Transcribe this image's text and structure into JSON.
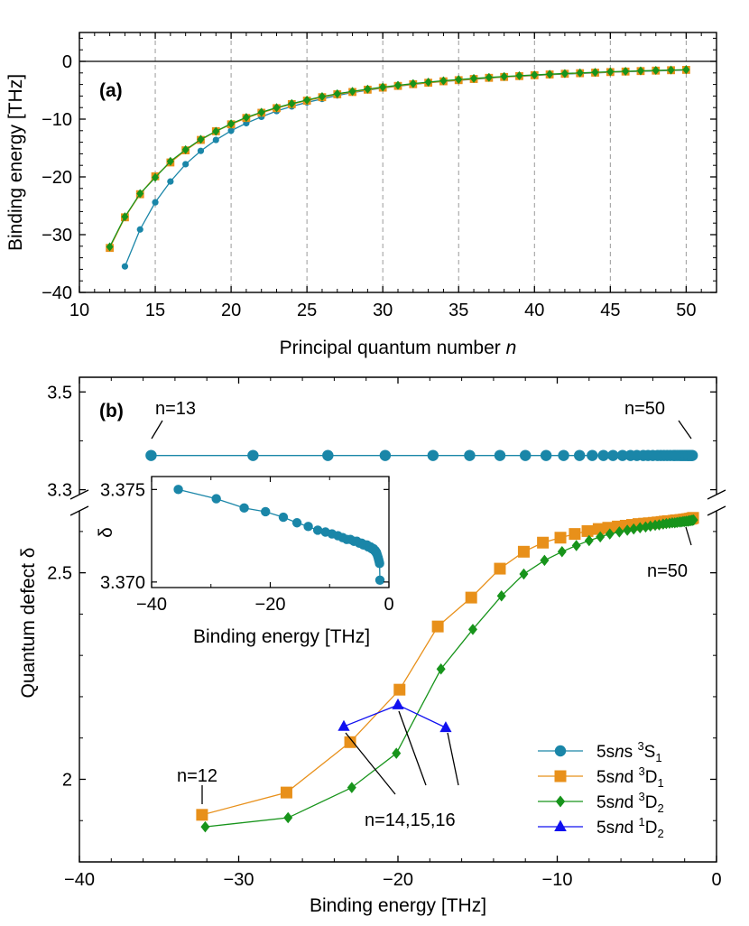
{
  "colors": {
    "S1": "#1a86a8",
    "D1": "#e8901a",
    "D2": "#17941b",
    "D2b": "#1010f0",
    "frame": "#000000",
    "grid": "#9a9a9a"
  },
  "chart_data": [
    {
      "id": "a",
      "type": "line",
      "panel_label": "(a)",
      "xlabel": "Principal quantum number",
      "xlabel_var": "n",
      "ylabel": "Binding energy [THz]",
      "xlim": [
        10,
        52
      ],
      "ylim": [
        -40,
        5
      ],
      "xticks": [
        10,
        15,
        20,
        25,
        30,
        35,
        40,
        45,
        50
      ],
      "yticks": [
        0,
        -10,
        -20,
        -30,
        -40
      ],
      "ytick_labels": [
        "0",
        "−10",
        "−20",
        "−30",
        "−40"
      ],
      "vgrid": [
        15,
        20,
        25,
        30,
        35,
        40,
        45,
        50
      ],
      "hline": 0,
      "series": [
        {
          "key": "S1",
          "marker": "circle",
          "n": [
            13,
            14,
            15,
            16,
            17,
            18,
            19,
            20,
            21,
            22,
            23,
            24,
            25,
            26,
            27,
            28,
            29,
            30,
            31,
            32,
            33,
            34,
            35,
            36,
            37,
            38,
            39,
            40,
            41,
            42,
            43,
            44,
            45,
            46,
            47,
            48,
            49,
            50
          ],
          "energy": [
            -35.5,
            -29.1,
            -24.4,
            -20.8,
            -17.8,
            -15.5,
            -13.6,
            -12.0,
            -10.7,
            -9.6,
            -8.6,
            -7.8,
            -7.1,
            -6.5,
            -5.9,
            -5.4,
            -5.0,
            -4.6,
            -4.3,
            -4.0,
            -3.7,
            -3.5,
            -3.3,
            -3.1,
            -2.9,
            -2.7,
            -2.6,
            -2.45,
            -2.3,
            -2.2,
            -2.1,
            -2.0,
            -1.9,
            -1.8,
            -1.73,
            -1.65,
            -1.58,
            -1.52
          ]
        },
        {
          "key": "D1",
          "marker": "square",
          "n": [
            12,
            13,
            14,
            15,
            16,
            17,
            18,
            19,
            20,
            21,
            22,
            23,
            24,
            25,
            26,
            27,
            28,
            29,
            30,
            31,
            32,
            33,
            34,
            35,
            36,
            37,
            38,
            39,
            40,
            41,
            42,
            43,
            44,
            45,
            46,
            47,
            48,
            49,
            50
          ],
          "energy": [
            -32.3,
            -27.0,
            -23.0,
            -19.9,
            -17.5,
            -15.4,
            -13.6,
            -12.1,
            -10.9,
            -9.8,
            -8.9,
            -8.1,
            -7.4,
            -6.8,
            -6.2,
            -5.7,
            -5.3,
            -4.9,
            -4.55,
            -4.25,
            -3.95,
            -3.7,
            -3.45,
            -3.25,
            -3.05,
            -2.85,
            -2.7,
            -2.55,
            -2.4,
            -2.27,
            -2.15,
            -2.05,
            -1.95,
            -1.85,
            -1.76,
            -1.68,
            -1.6,
            -1.53,
            -1.47
          ]
        },
        {
          "key": "D2",
          "marker": "diamond",
          "n": [
            12,
            13,
            14,
            15,
            16,
            17,
            18,
            19,
            20,
            21,
            22,
            23,
            24,
            25,
            26,
            27,
            28,
            29,
            30,
            31,
            32,
            33,
            34,
            35,
            36,
            37,
            38,
            39,
            40,
            41,
            42,
            43,
            44,
            45,
            46,
            47,
            48,
            49,
            50
          ],
          "energy": [
            -32.1,
            -26.9,
            -22.9,
            -20.1,
            -17.3,
            -15.3,
            -13.5,
            -12.1,
            -10.8,
            -9.7,
            -8.8,
            -8.0,
            -7.3,
            -6.7,
            -6.1,
            -5.6,
            -5.2,
            -4.8,
            -4.45,
            -4.15,
            -3.85,
            -3.6,
            -3.35,
            -3.15,
            -2.95,
            -2.78,
            -2.62,
            -2.48,
            -2.34,
            -2.22,
            -2.1,
            -2.0,
            -1.9,
            -1.8,
            -1.72,
            -1.64,
            -1.57,
            -1.5,
            -1.44
          ]
        }
      ]
    },
    {
      "id": "b",
      "type": "line",
      "panel_label": "(b)",
      "xlabel": "Binding energy [THz]",
      "ylabel": "Quantum defect δ",
      "xlim": [
        -40,
        0
      ],
      "ylim_upper": [
        3.29,
        3.53
      ],
      "ylim_lower": [
        1.8,
        2.65
      ],
      "yticks_upper": [
        3.5,
        3.3
      ],
      "ytick_labels_upper": [
        "3.5",
        "3.3"
      ],
      "yticks_lower": [
        2.5,
        2.0
      ],
      "ytick_labels_lower": [
        "2.5",
        "2"
      ],
      "xticks": [
        -40,
        -30,
        -20,
        -10,
        0
      ],
      "xtick_labels": [
        "−40",
        "−30",
        "−20",
        "−10",
        "0"
      ],
      "series": [
        {
          "key": "S1",
          "name_parts": [
            "5s",
            "n",
            "s ",
            "3",
            "S",
            "1"
          ],
          "marker": "circle",
          "x": [
            -35.5,
            -29.1,
            -24.4,
            -20.8,
            -17.8,
            -15.5,
            -13.6,
            -12.0,
            -10.7,
            -9.6,
            -8.6,
            -7.8,
            -7.1,
            -6.5,
            -5.9,
            -5.4,
            -5.0,
            -4.6,
            -4.3,
            -4.0,
            -3.7,
            -3.5,
            -3.3,
            -3.1,
            -2.9,
            -2.7,
            -2.6,
            -2.45,
            -2.3,
            -2.2,
            -2.1,
            -2.0,
            -1.9,
            -1.8,
            -1.73,
            -1.65,
            -1.58,
            -1.52
          ],
          "y": [
            3.375,
            3.3745,
            3.374,
            3.3738,
            3.3735,
            3.3732,
            3.373,
            3.3728,
            3.3727,
            3.3726,
            3.3725,
            3.3724,
            3.3723,
            3.3723,
            3.3722,
            3.3722,
            3.3721,
            3.3721,
            3.372,
            3.372,
            3.372,
            3.3719,
            3.3719,
            3.3719,
            3.3718,
            3.3718,
            3.3718,
            3.3717,
            3.3717,
            3.3716,
            3.3716,
            3.3715,
            3.3714,
            3.3713,
            3.3712,
            3.3711,
            3.371,
            3.3701
          ]
        },
        {
          "key": "D1",
          "name_parts": [
            "5s",
            "n",
            "d ",
            "3",
            "D",
            "1"
          ],
          "marker": "square",
          "x": [
            -32.3,
            -27.0,
            -23.0,
            -19.9,
            -17.5,
            -15.4,
            -13.6,
            -12.1,
            -10.9,
            -9.8,
            -8.9,
            -8.1,
            -7.4,
            -6.8,
            -6.2,
            -5.7,
            -5.3,
            -4.9,
            -4.55,
            -4.25,
            -3.95,
            -3.7,
            -3.45,
            -3.25,
            -3.05,
            -2.85,
            -2.7,
            -2.55,
            -2.4,
            -2.27,
            -2.15,
            -2.05,
            -1.95,
            -1.85,
            -1.76,
            -1.68,
            -1.6,
            -1.53,
            -1.47
          ],
          "y": [
            1.914,
            1.968,
            2.09,
            2.217,
            2.37,
            2.44,
            2.51,
            2.551,
            2.573,
            2.585,
            2.594,
            2.601,
            2.606,
            2.609,
            2.612,
            2.614,
            2.616,
            2.618,
            2.619,
            2.62,
            2.621,
            2.622,
            2.623,
            2.624,
            2.625,
            2.625,
            2.626,
            2.627,
            2.627,
            2.628,
            2.628,
            2.629,
            2.629,
            2.63,
            2.63,
            2.631,
            2.631,
            2.632,
            2.633
          ]
        },
        {
          "key": "D2",
          "name_parts": [
            "5s",
            "n",
            "d ",
            "3",
            "D",
            "2"
          ],
          "marker": "diamond",
          "x": [
            -32.1,
            -26.9,
            -22.9,
            -20.1,
            -17.3,
            -15.3,
            -13.5,
            -12.1,
            -10.8,
            -9.7,
            -8.8,
            -8.0,
            -7.3,
            -6.7,
            -6.1,
            -5.6,
            -5.2,
            -4.8,
            -4.45,
            -4.15,
            -3.85,
            -3.6,
            -3.35,
            -3.15,
            -2.95,
            -2.78,
            -2.62,
            -2.48,
            -2.34,
            -2.22,
            -2.1,
            -2.0,
            -1.9,
            -1.8,
            -1.72,
            -1.64,
            -1.57,
            -1.5,
            -1.44
          ],
          "y": [
            1.885,
            1.907,
            1.98,
            2.063,
            2.267,
            2.363,
            2.444,
            2.497,
            2.53,
            2.551,
            2.566,
            2.578,
            2.587,
            2.594,
            2.599,
            2.603,
            2.606,
            2.609,
            2.611,
            2.613,
            2.615,
            2.616,
            2.618,
            2.619,
            2.62,
            2.621,
            2.621,
            2.622,
            2.623,
            2.623,
            2.624,
            2.624,
            2.625,
            2.625,
            2.626,
            2.626,
            2.627,
            2.627,
            2.628
          ]
        },
        {
          "key": "D2b",
          "name_parts": [
            "5s",
            "n",
            "d ",
            "1",
            "D",
            "2"
          ],
          "marker": "triangle",
          "x": [
            -23.4,
            -20.0,
            -17.0
          ],
          "y": [
            2.128,
            2.18,
            2.125
          ]
        }
      ],
      "annotations": {
        "n13": "n=13",
        "n50_upper": "n=50",
        "n50_lower": "n=50",
        "n12": "n=12",
        "n14_16": "n=14,15,16"
      },
      "inset": {
        "xlabel": "Binding energy [THz]",
        "ylabel": "δ",
        "xlim": [
          -40,
          0
        ],
        "ylim": [
          3.3697,
          3.3757
        ],
        "xticks": [
          -40,
          -20,
          0
        ],
        "xtick_labels": [
          "−40",
          "−20",
          "0"
        ],
        "yticks": [
          3.375,
          3.37
        ],
        "ytick_labels": [
          "3.375",
          "3.370"
        ]
      }
    }
  ]
}
